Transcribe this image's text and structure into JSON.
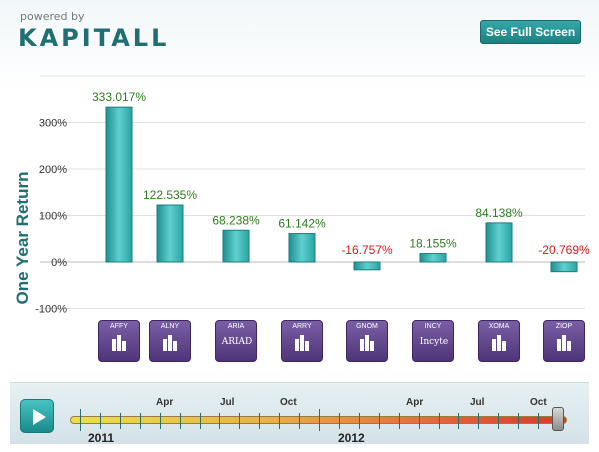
{
  "header": {
    "powered_by": "powered by",
    "logo": "KAPITALL",
    "fullscreen_label": "See Full Screen"
  },
  "chart_data": {
    "type": "bar",
    "ylabel": "One Year Return",
    "ylim": [
      -100,
      333
    ],
    "yticks": [
      "300%",
      "200%",
      "100%",
      "0%",
      "-100%"
    ],
    "categories": [
      "AFFY",
      "ALNY",
      "ARIA",
      "ARRY",
      "GNOM",
      "INCY",
      "XOMA",
      "ZIOP"
    ],
    "values": [
      333.017,
      122.535,
      68.238,
      61.142,
      -16.757,
      18.155,
      84.138,
      -20.769
    ],
    "value_labels": [
      "333.017%",
      "122.535%",
      "68.238%",
      "61.142%",
      "-16.757%",
      "18.155%",
      "84.138%",
      "-20.769%"
    ],
    "positive_color": "#2e7d1e",
    "negative_color": "#d11d1d",
    "bar_color": "#2fb0b0"
  },
  "tickers": [
    {
      "symbol": "AFFY",
      "logo": ""
    },
    {
      "symbol": "ALNY",
      "logo": ""
    },
    {
      "symbol": "ARIA",
      "logo": "ARIAD"
    },
    {
      "symbol": "ARRY",
      "logo": ""
    },
    {
      "symbol": "GNOM",
      "logo": ""
    },
    {
      "symbol": "INCY",
      "logo": "Incyte"
    },
    {
      "symbol": "XOMA",
      "logo": ""
    },
    {
      "symbol": "ZIOP",
      "logo": ""
    }
  ],
  "timeline": {
    "months": [
      "Apr",
      "Jul",
      "Oct",
      "Apr",
      "Jul",
      "Oct"
    ],
    "years": [
      "2011",
      "2012"
    ],
    "play_icon": "play-icon"
  }
}
